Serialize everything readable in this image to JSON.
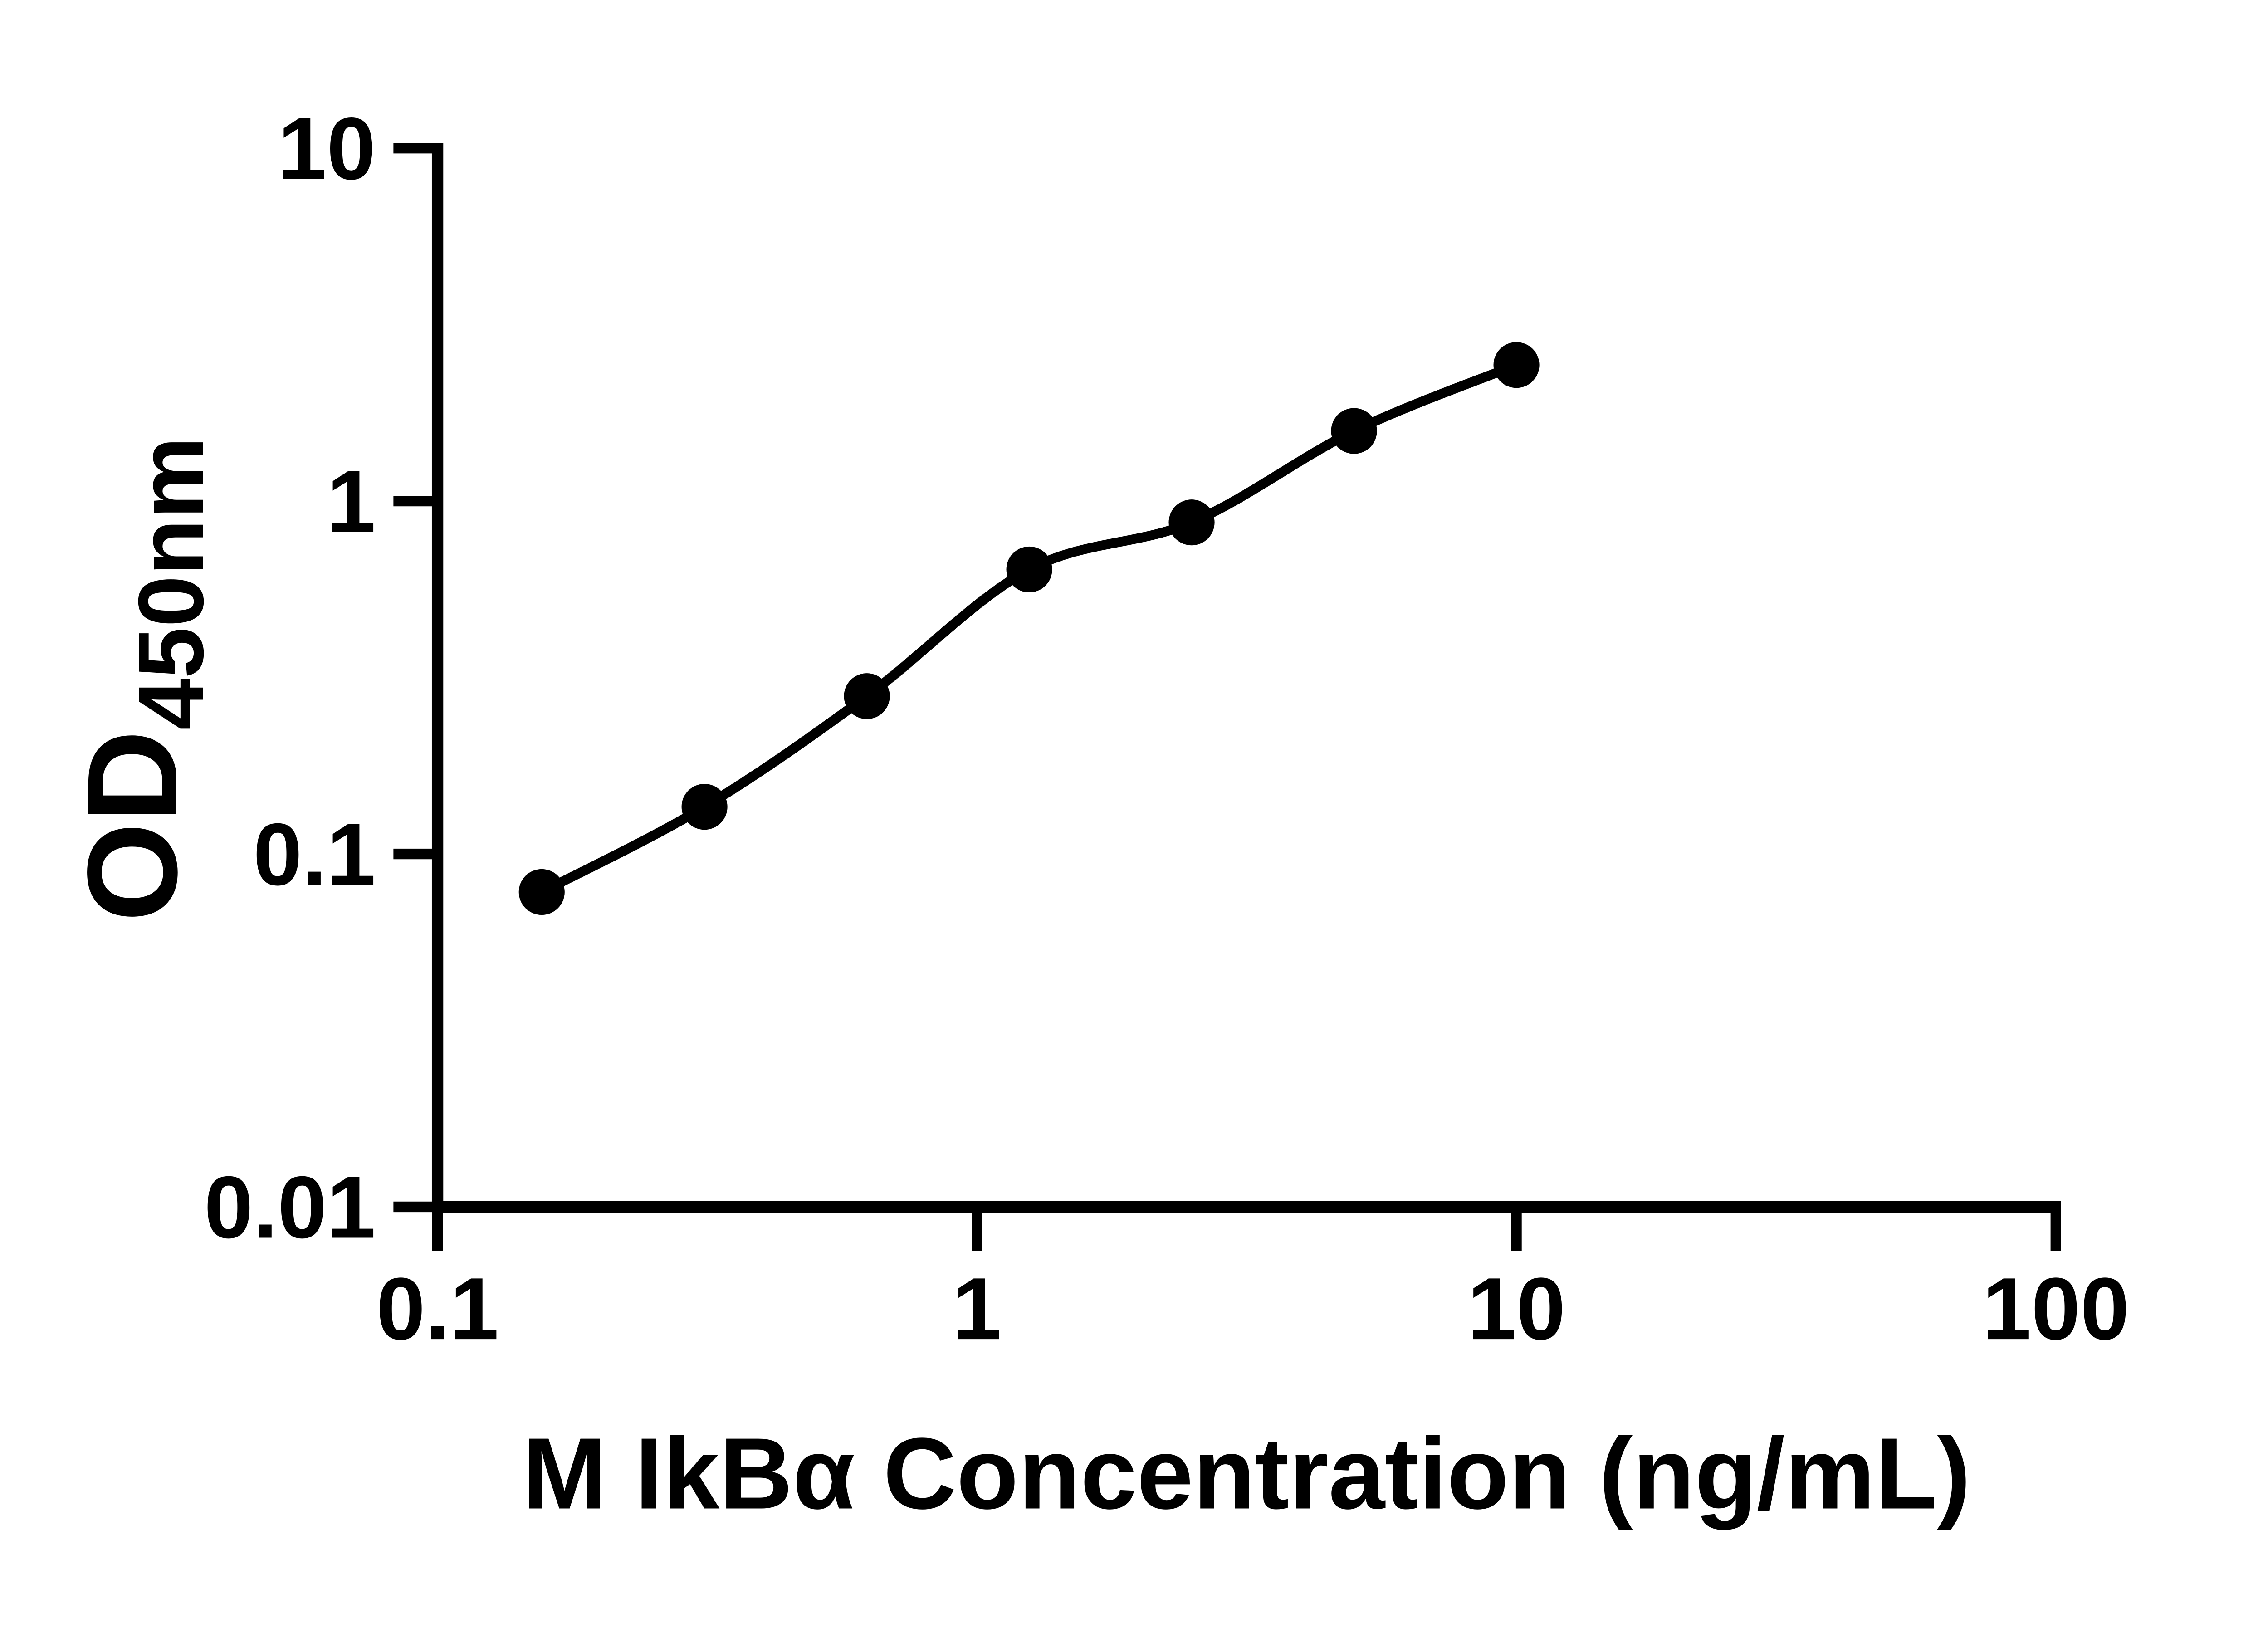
{
  "chart_data": {
    "type": "scatter",
    "title": "",
    "xlabel": "M IkBα Concentration (ng/mL)",
    "ylabel": "OD",
    "ylabel_subscript": "450nm",
    "x": [
      0.156,
      0.3125,
      0.625,
      1.25,
      2.5,
      5,
      10
    ],
    "y": [
      0.078,
      0.136,
      0.28,
      0.64,
      0.87,
      1.58,
      2.43
    ],
    "xscale": "log",
    "yscale": "log",
    "xlim": [
      0.1,
      100
    ],
    "ylim": [
      0.01,
      10
    ],
    "x_ticks": {
      "values": [
        0.1,
        1,
        10,
        100
      ],
      "labels": [
        "0.1",
        "1",
        "10",
        "100"
      ]
    },
    "y_ticks": {
      "values": [
        10,
        1,
        0.1,
        0.01
      ],
      "labels": [
        "10",
        "1",
        "0.1",
        "0.01"
      ]
    },
    "grid": false,
    "legend": null,
    "series_name": "standard-curve",
    "marker": {
      "shape": "circle",
      "radius_px": 52,
      "color": "#000000"
    },
    "line": {
      "style": "fitted-smooth",
      "color": "#000000"
    },
    "background_color": "#ffffff"
  }
}
